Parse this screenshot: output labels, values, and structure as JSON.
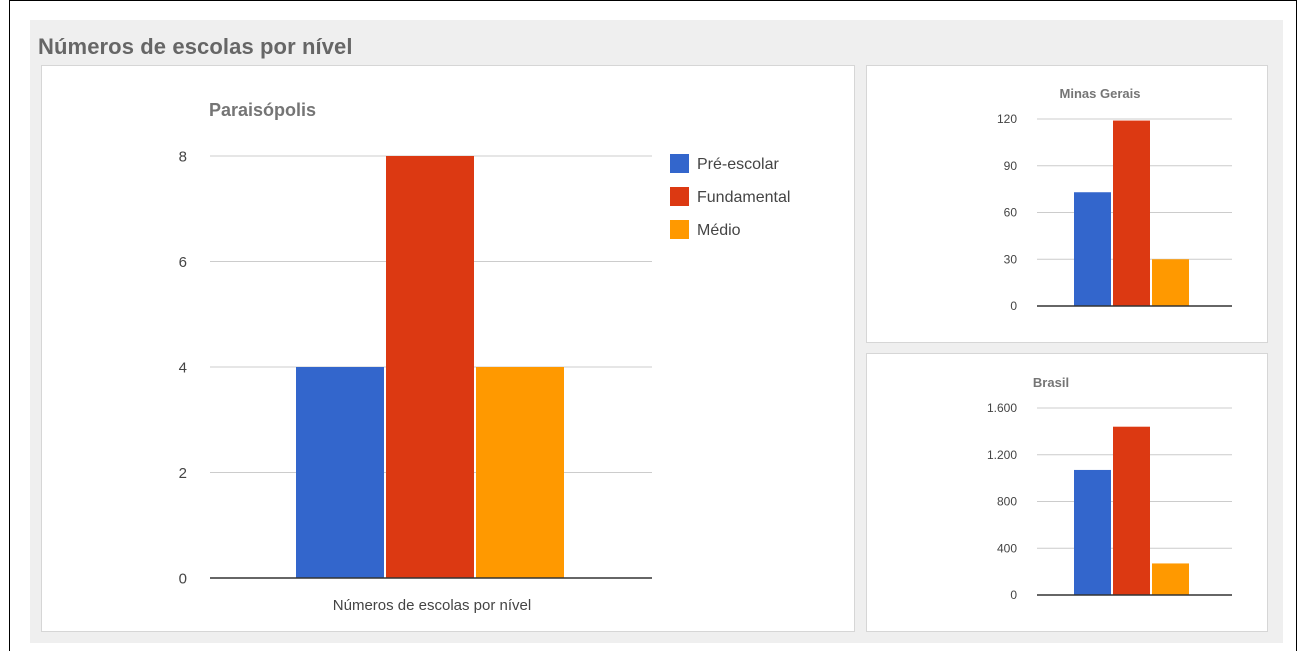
{
  "page": {
    "section_title": "Números de escolas por nível"
  },
  "colors": {
    "Pré-escolar": "#3366cc",
    "Fundamental": "#dc3912",
    "Médio": "#ff9900",
    "gridline": "#cccccc",
    "baseline": "#333333",
    "tick_text": "#444444",
    "title_text": "#757575"
  },
  "chart_data": [
    {
      "id": "paraisopolis",
      "type": "bar",
      "title": "Paraisópolis",
      "categories": [
        "Números de escolas por nível"
      ],
      "xlabel": "",
      "ylabel": "",
      "ylim": [
        0,
        8
      ],
      "yticks": [
        0,
        2,
        4,
        6,
        8
      ],
      "ytick_labels": [
        "0",
        "2",
        "4",
        "6",
        "8"
      ],
      "grid": true,
      "legend": "right",
      "series": [
        {
          "name": "Pré-escolar",
          "values": [
            4
          ]
        },
        {
          "name": "Fundamental",
          "values": [
            8
          ]
        },
        {
          "name": "Médio",
          "values": [
            4
          ]
        }
      ]
    },
    {
      "id": "minas-gerais",
      "type": "bar",
      "title": "Minas Gerais",
      "categories": [
        ""
      ],
      "ylim": [
        0,
        120
      ],
      "yticks": [
        0,
        30,
        60,
        90,
        120
      ],
      "ytick_labels": [
        "0",
        "30",
        "60",
        "90",
        "120"
      ],
      "grid": true,
      "legend": "none",
      "series": [
        {
          "values": [
            73
          ]
        },
        {
          "values": [
            119
          ]
        },
        {
          "values": [
            30
          ]
        }
      ]
    },
    {
      "id": "brasil",
      "type": "bar",
      "title": "Brasil",
      "categories": [
        ""
      ],
      "ylim": [
        0,
        1600
      ],
      "yticks": [
        0,
        400,
        800,
        1200,
        1600
      ],
      "ytick_labels": [
        "0",
        "400",
        "800",
        "1.200",
        "1.600"
      ],
      "grid": true,
      "legend": "none",
      "series": [
        {
          "values": [
            1070
          ]
        },
        {
          "values": [
            1440
          ]
        },
        {
          "values": [
            270
          ]
        }
      ]
    }
  ]
}
